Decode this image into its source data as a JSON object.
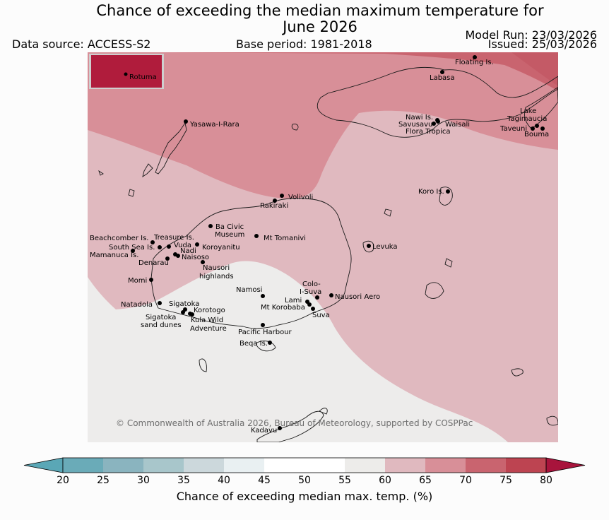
{
  "header": {
    "title_line1": "Chance of exceeding the median maximum temperature for",
    "title_line2": "June 2026",
    "data_source": "Data source: ACCESS-S2",
    "base_period": "Base period: 1981-2018",
    "model_run": "Model Run: 23/03/2026",
    "issued": "Issued: 25/03/2026"
  },
  "map": {
    "inset_label": "Rotuma",
    "copyright": "© Commonwealth of Australia 2026, Bureau of Meteorology, supported by COSPPac",
    "places": [
      "Floating Is.",
      "Labasa",
      "Yasawa-I-Rara",
      "Nawi Is.",
      "Savusavu",
      "Waisali",
      "Flora Tropica",
      "Lake",
      "Tagimaucia",
      "Taveuni",
      "Bouma",
      "Volivoli",
      "Rakiraki",
      "Koro Is.",
      "Ba Civic",
      "Museum",
      "Mt Tomanivi",
      "Beachcomber Is.",
      "Treasure Is.",
      "South Sea Is.",
      "Vuda",
      "Koroyanitu",
      "Nadi",
      "Naisoso",
      "Mamanuca Is.",
      "Denarau",
      "Levuka",
      "Nausori",
      "highlands",
      "Momi",
      "Namosi",
      "Colo-",
      "I-Suva",
      "Nausori Aero",
      "Lami",
      "Mt Korobaba",
      "Suva",
      "Natadola",
      "Sigatoka",
      "Korotogo",
      "Sigatoka",
      "sand dunes",
      "Kula Wild",
      "Adventure",
      "Pacific Harbour",
      "Beqa Is.",
      "Kadavu"
    ]
  },
  "legend": {
    "ticks": [
      "20",
      "25",
      "30",
      "35",
      "40",
      "45",
      "50",
      "55",
      "60",
      "65",
      "70",
      "75",
      "80"
    ],
    "label": "Chance of exceeding median max. temp. (%)",
    "colors": [
      "#5aa7b6",
      "#6aabb8",
      "#8ab4bf",
      "#a8c6cb",
      "#ccd8dc",
      "#e9f0f2",
      "#ffffff",
      "#ffffff",
      "#edecea",
      "#e0b9bf",
      "#d88f98",
      "#c9646f",
      "#bd4451",
      "#a8143c"
    ]
  }
}
